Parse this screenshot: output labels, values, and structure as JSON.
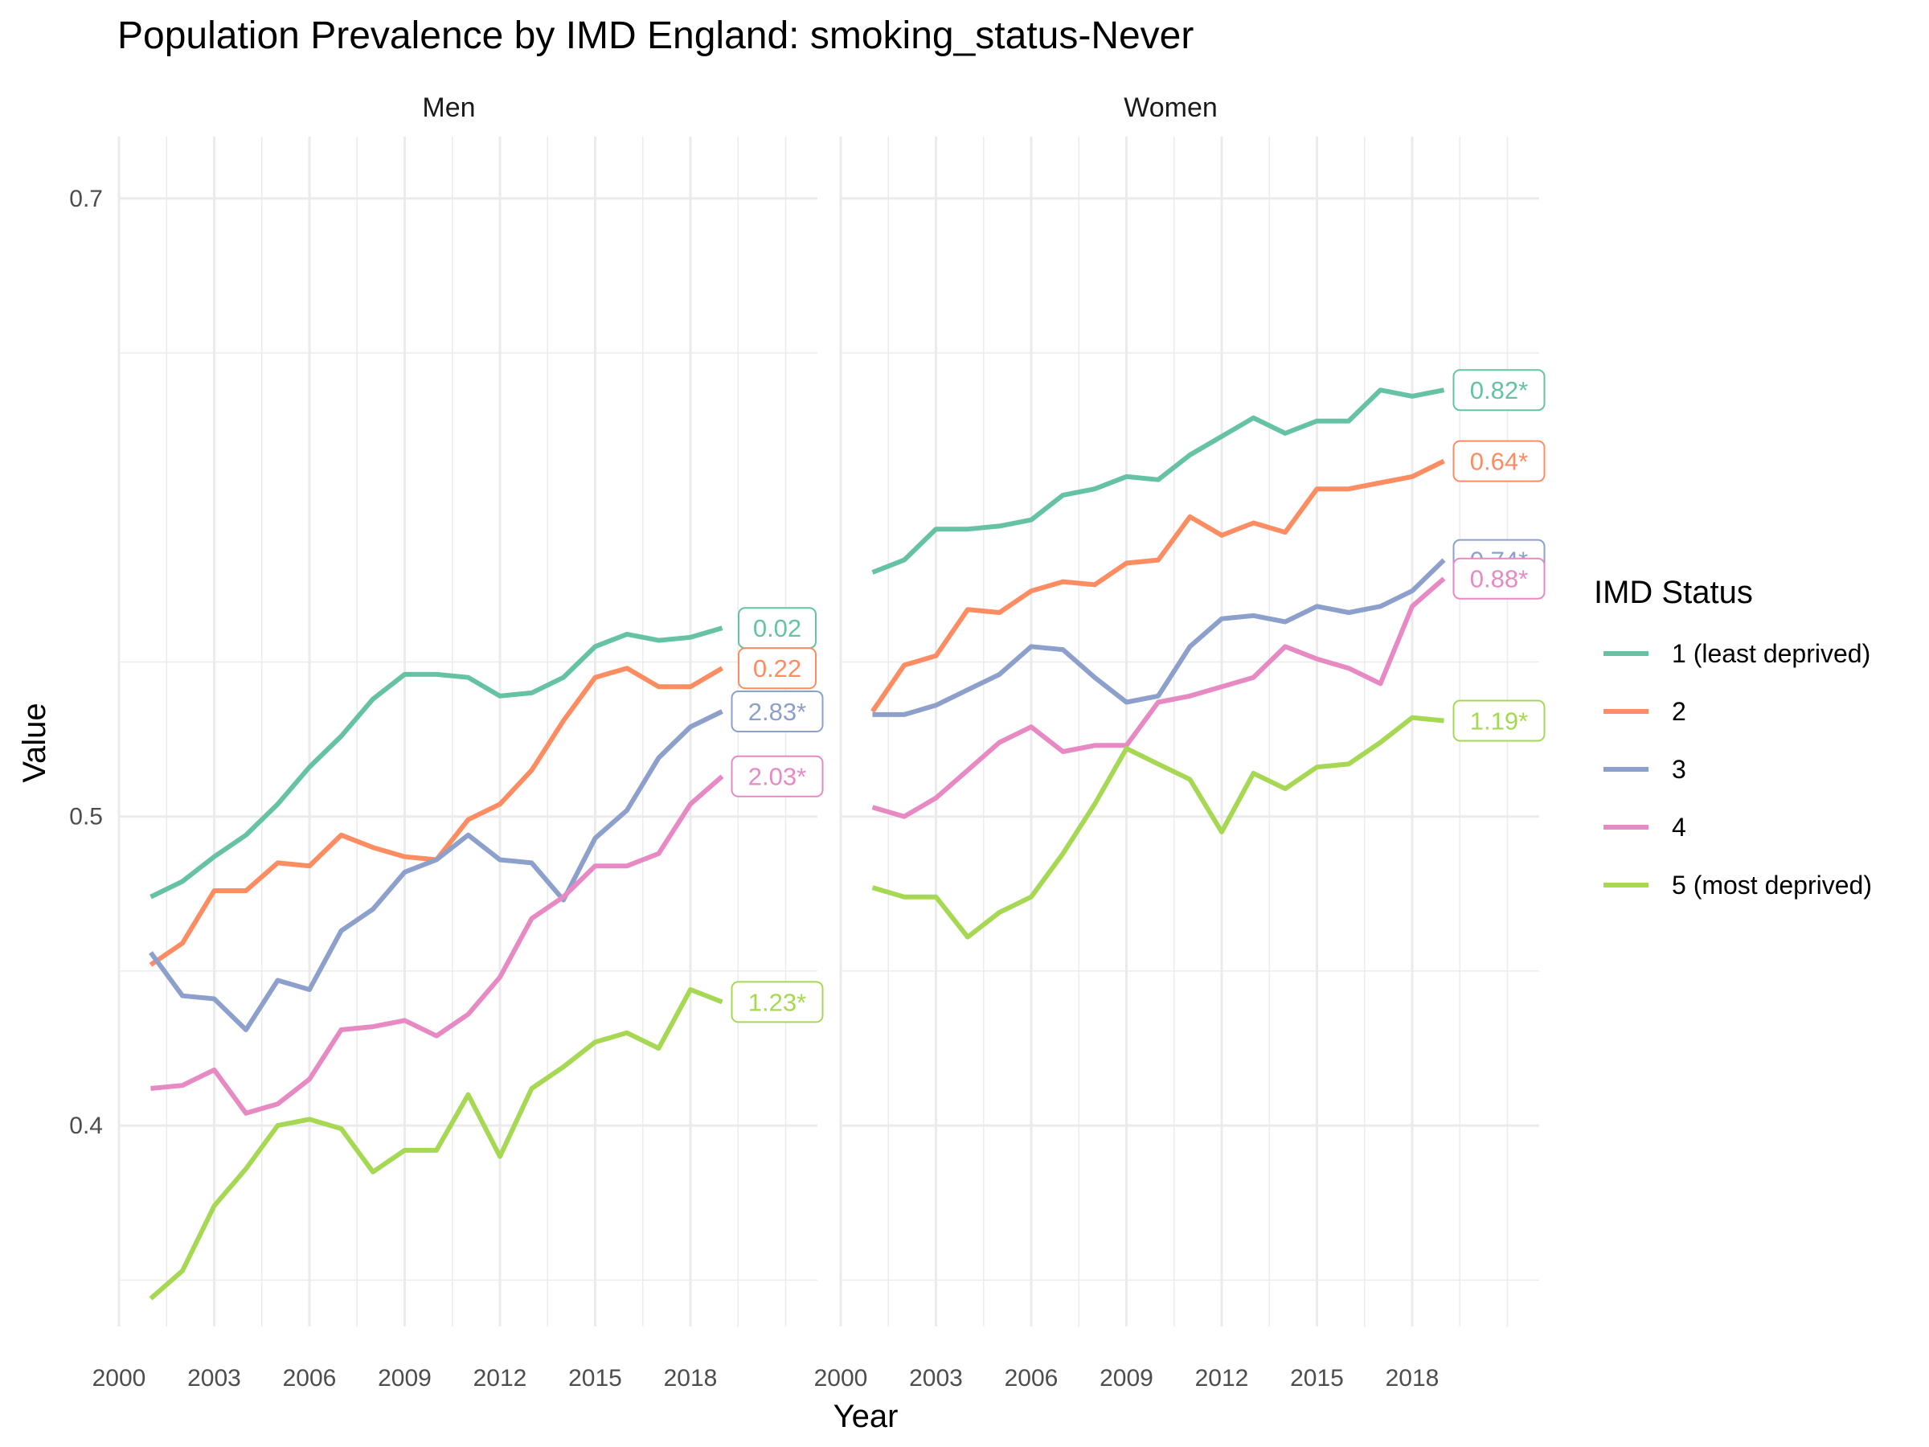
{
  "chart_data": {
    "type": "line",
    "title": "Population Prevalence by IMD England: smoking_status-Never",
    "xlabel": "Year",
    "ylabel": "Value",
    "x_ticks": [
      2000,
      2003,
      2006,
      2009,
      2012,
      2015,
      2018
    ],
    "xlim": [
      2000,
      2022
    ],
    "y_ticks": [
      0.4,
      0.5,
      0.7
    ],
    "ylim": [
      0.335,
      0.72
    ],
    "grid": true,
    "legend": {
      "title": "IMD Status",
      "placement": "right",
      "entries": [
        "1 (least deprived)",
        "2",
        "3",
        "4",
        "5 (most deprived)"
      ]
    },
    "colors": {
      "1 (least deprived)": "#66C2A5",
      "2": "#FC8D62",
      "3": "#8DA0CB",
      "4": "#E78AC3",
      "5 (most deprived)": "#A6D854"
    },
    "x": [
      2001,
      2002,
      2003,
      2004,
      2005,
      2006,
      2007,
      2008,
      2009,
      2010,
      2011,
      2012,
      2013,
      2014,
      2015,
      2016,
      2017,
      2018,
      2019
    ],
    "panels": [
      {
        "name": "Men",
        "series": [
          {
            "name": "1 (least deprived)",
            "values": [
              0.474,
              0.479,
              0.487,
              0.494,
              0.504,
              0.516,
              0.526,
              0.538,
              0.546,
              0.546,
              0.545,
              0.539,
              0.54,
              0.545,
              0.555,
              0.559,
              0.557,
              0.558,
              0.561
            ],
            "label": "0.02"
          },
          {
            "name": "2",
            "values": [
              0.452,
              0.459,
              0.476,
              0.476,
              0.485,
              0.484,
              0.494,
              0.49,
              0.487,
              0.486,
              0.499,
              0.504,
              0.515,
              0.531,
              0.545,
              0.548,
              0.542,
              0.542,
              0.548
            ],
            "label": "0.22"
          },
          {
            "name": "3",
            "values": [
              0.456,
              0.442,
              0.441,
              0.431,
              0.447,
              0.444,
              0.463,
              0.47,
              0.482,
              0.486,
              0.494,
              0.486,
              0.485,
              0.473,
              0.493,
              0.502,
              0.519,
              0.529,
              0.534
            ],
            "label": "2.83*"
          },
          {
            "name": "4",
            "values": [
              0.412,
              0.413,
              0.418,
              0.404,
              0.407,
              0.415,
              0.431,
              0.432,
              0.434,
              0.429,
              0.436,
              0.448,
              0.467,
              0.474,
              0.484,
              0.484,
              0.488,
              0.504,
              0.513
            ],
            "label": "2.03*"
          },
          {
            "name": "5 (most deprived)",
            "values": [
              0.344,
              0.353,
              0.374,
              0.386,
              0.4,
              0.402,
              0.399,
              0.385,
              0.392,
              0.392,
              0.41,
              0.39,
              0.412,
              0.419,
              0.427,
              0.43,
              0.425,
              0.444,
              0.44
            ],
            "label": "1.23*"
          }
        ]
      },
      {
        "name": "Women",
        "series": [
          {
            "name": "1 (least deprived)",
            "values": [
              0.579,
              0.583,
              0.593,
              0.593,
              0.594,
              0.596,
              0.604,
              0.606,
              0.61,
              0.609,
              0.617,
              0.623,
              0.629,
              0.624,
              0.628,
              0.628,
              0.638,
              0.636,
              0.638
            ],
            "label": "0.82*"
          },
          {
            "name": "2",
            "values": [
              0.534,
              0.549,
              0.552,
              0.567,
              0.566,
              0.573,
              0.576,
              0.575,
              0.582,
              0.583,
              0.597,
              0.591,
              0.595,
              0.592,
              0.606,
              0.606,
              0.608,
              0.61,
              0.615
            ],
            "label": "0.64*"
          },
          {
            "name": "3",
            "values": [
              0.533,
              0.533,
              0.536,
              0.541,
              0.546,
              0.555,
              0.554,
              0.545,
              0.537,
              0.539,
              0.555,
              0.564,
              0.565,
              0.563,
              0.568,
              0.566,
              0.568,
              0.573,
              0.583
            ],
            "label": "0.74*"
          },
          {
            "name": "4",
            "values": [
              0.503,
              0.5,
              0.506,
              0.515,
              0.524,
              0.529,
              0.521,
              0.523,
              0.523,
              0.537,
              0.539,
              0.542,
              0.545,
              0.555,
              0.551,
              0.548,
              0.543,
              0.568,
              0.577
            ],
            "label": "0.88*"
          },
          {
            "name": "5 (most deprived)",
            "values": [
              0.477,
              0.474,
              0.474,
              0.461,
              0.469,
              0.474,
              0.488,
              0.504,
              0.522,
              0.517,
              0.512,
              0.495,
              0.514,
              0.509,
              0.516,
              0.517,
              0.524,
              0.532,
              0.531
            ],
            "label": "1.19*"
          }
        ]
      }
    ]
  }
}
